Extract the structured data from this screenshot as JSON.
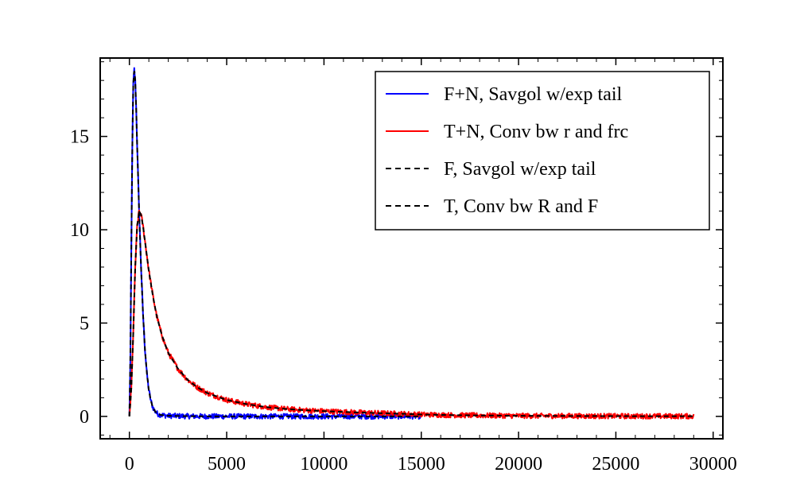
{
  "chart_data": {
    "type": "line",
    "title": "",
    "xlabel": "",
    "ylabel": "",
    "xlim": [
      -1500,
      30500
    ],
    "ylim": [
      -1.2,
      19.2
    ],
    "xticks": [
      0,
      5000,
      10000,
      15000,
      20000,
      25000,
      30000
    ],
    "xtick_labels": [
      "0",
      "5000",
      "10000",
      "15000",
      "20000",
      "25000",
      "30000"
    ],
    "yticks": [
      0,
      5,
      10,
      15
    ],
    "ytick_labels": [
      "0",
      "5",
      "10",
      "15"
    ],
    "grid": false,
    "legend_position": "top-right",
    "series": [
      {
        "name": "F+N, Savgol w/exp tail",
        "color": "#0000ff",
        "style": "solid",
        "noisy": true,
        "x": [
          0,
          50,
          100,
          150,
          200,
          250,
          300,
          350,
          400,
          500,
          600,
          700,
          800,
          900,
          1000,
          1100,
          1200,
          1300,
          1400,
          1500,
          1600,
          1800,
          2000,
          2500,
          3000,
          4000,
          5000,
          7000,
          10000,
          13000,
          15000
        ],
        "y": [
          0,
          3,
          9,
          14.5,
          17.8,
          18.6,
          18.0,
          16.5,
          14.5,
          11.0,
          8.0,
          5.5,
          3.6,
          2.3,
          1.4,
          0.85,
          0.5,
          0.3,
          0.18,
          0.11,
          0.08,
          0.05,
          0.03,
          0.02,
          0.01,
          0.0,
          0.0,
          0.0,
          0.0,
          0.0,
          0.0
        ]
      },
      {
        "name": "T+N, Conv bw r and frc",
        "color": "#ff0000",
        "style": "solid",
        "noisy": true,
        "x": [
          0,
          100,
          200,
          300,
          400,
          500,
          600,
          700,
          800,
          1000,
          1200,
          1400,
          1600,
          1800,
          2000,
          2500,
          3000,
          3500,
          4000,
          5000,
          6000,
          7000,
          8000,
          9000,
          10000,
          12000,
          14000,
          15000,
          17000,
          20000,
          23000,
          26000,
          29000
        ],
        "y": [
          0,
          1.5,
          4.5,
          8.0,
          10.2,
          11.0,
          10.8,
          10.2,
          9.4,
          7.8,
          6.5,
          5.4,
          4.6,
          3.95,
          3.4,
          2.55,
          1.95,
          1.55,
          1.25,
          0.88,
          0.66,
          0.5,
          0.4,
          0.33,
          0.28,
          0.2,
          0.14,
          0.1,
          0.06,
          0.03,
          0.02,
          0.01,
          0.01
        ]
      },
      {
        "name": "F, Savgol w/exp tail",
        "color": "#000000",
        "style": "dashed",
        "noisy": false,
        "x": [
          0,
          50,
          100,
          150,
          200,
          250,
          300,
          350,
          400,
          500,
          600,
          700,
          800,
          900,
          1000,
          1100,
          1200,
          1300,
          1400,
          1500,
          1600,
          1800,
          2000,
          2500,
          3000,
          4000,
          5000,
          7000,
          10000,
          13000,
          15000
        ],
        "y": [
          0,
          3,
          9,
          14.5,
          17.8,
          18.6,
          18.0,
          16.5,
          14.5,
          11.0,
          8.0,
          5.5,
          3.6,
          2.3,
          1.4,
          0.85,
          0.5,
          0.3,
          0.18,
          0.11,
          0.08,
          0.05,
          0.03,
          0.02,
          0.01,
          0.0,
          0.0,
          0.0,
          0.0,
          0.0,
          0.0
        ]
      },
      {
        "name": "T, Conv bw R and F",
        "color": "#000000",
        "style": "dashed",
        "noisy": false,
        "x": [
          0,
          100,
          200,
          300,
          400,
          500,
          600,
          700,
          800,
          1000,
          1200,
          1400,
          1600,
          1800,
          2000,
          2500,
          3000,
          3500,
          4000,
          5000,
          6000,
          7000,
          8000,
          9000,
          10000,
          12000,
          14000,
          15000,
          17000,
          20000,
          23000,
          26000,
          29000
        ],
        "y": [
          0,
          1.5,
          4.5,
          8.0,
          10.2,
          11.0,
          10.8,
          10.2,
          9.4,
          7.8,
          6.5,
          5.4,
          4.6,
          3.95,
          3.4,
          2.55,
          1.95,
          1.55,
          1.25,
          0.88,
          0.66,
          0.5,
          0.4,
          0.33,
          0.28,
          0.2,
          0.14,
          0.1,
          0.06,
          0.03,
          0.02,
          0.01,
          0.01
        ]
      }
    ]
  }
}
